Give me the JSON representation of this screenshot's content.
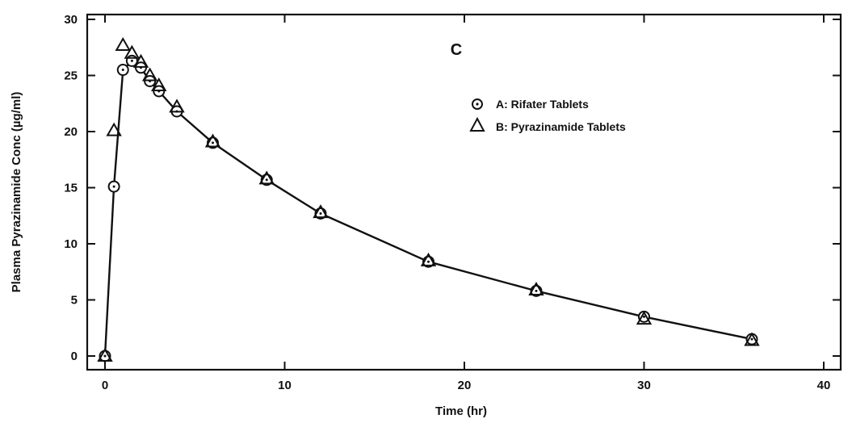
{
  "chart_data": {
    "type": "scatter",
    "panel_label": "C",
    "xlabel": "Time (hr)",
    "ylabel": "Plasma Pyrazinamide Conc (µg/ml)",
    "xlim": [
      0,
      40
    ],
    "ylim": [
      0,
      30
    ],
    "xticks": [
      0,
      10,
      20,
      30,
      40
    ],
    "yticks": [
      0,
      5,
      10,
      15,
      20,
      25,
      30
    ],
    "grid": false,
    "legend_position": "top-right",
    "series": [
      {
        "name": "A: Rifater Tablets",
        "marker": "circle",
        "x": [
          0,
          0.5,
          1,
          1.5,
          2,
          2.5,
          3,
          4,
          6,
          9,
          12,
          18,
          24,
          30,
          36
        ],
        "y": [
          0,
          15.1,
          25.5,
          26.3,
          25.7,
          24.5,
          23.6,
          21.8,
          19.0,
          15.7,
          12.7,
          8.4,
          5.8,
          3.5,
          1.5
        ]
      },
      {
        "name": "B: Pyrazinamide Tablets",
        "marker": "triangle",
        "x": [
          0,
          0.5,
          1,
          1.5,
          2,
          2.5,
          3,
          4,
          6,
          9,
          12,
          18,
          24,
          30,
          36
        ],
        "y": [
          0,
          20.1,
          27.7,
          27.0,
          26.2,
          25.0,
          24.1,
          22.2,
          19.1,
          15.8,
          12.8,
          8.5,
          5.9,
          3.3,
          1.4
        ]
      }
    ]
  }
}
